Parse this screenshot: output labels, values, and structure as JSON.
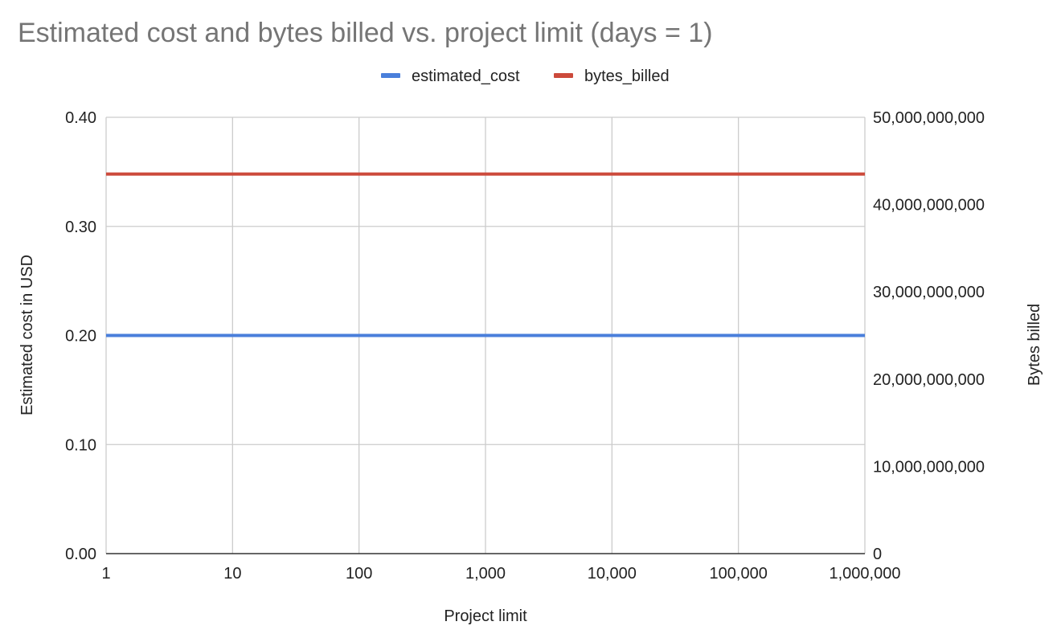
{
  "chart_data": {
    "type": "line",
    "title": "Estimated cost and bytes billed vs. project limit (days = 1)",
    "xlabel": "Project limit",
    "ylabel": "Estimated cost in USD",
    "y2label": "Bytes billed",
    "x_scale": "log",
    "x": [
      1,
      10,
      100,
      1000,
      10000,
      100000,
      1000000
    ],
    "x_tick_labels": [
      "1",
      "10",
      "100",
      "1,000",
      "10,000",
      "100,000",
      "1,000,000"
    ],
    "y_ticks": [
      0,
      0.1,
      0.2,
      0.3,
      0.4
    ],
    "y_tick_labels": [
      "0.00",
      "0.10",
      "0.20",
      "0.30",
      "0.40"
    ],
    "ylim": [
      0,
      0.4
    ],
    "y2_ticks": [
      0,
      10000000000,
      20000000000,
      30000000000,
      40000000000,
      50000000000
    ],
    "y2_tick_labels": [
      "0",
      "10,000,000,000",
      "20,000,000,000",
      "30,000,000,000",
      "40,000,000,000",
      "50,000,000,000"
    ],
    "y2lim": [
      0,
      50000000000
    ],
    "legend_position": "top",
    "grid": true,
    "series": [
      {
        "name": "estimated_cost",
        "axis": "left",
        "color": "#4a7fdb",
        "values": [
          0.2,
          0.2,
          0.2,
          0.2,
          0.2,
          0.2,
          0.2
        ]
      },
      {
        "name": "bytes_billed",
        "axis": "right",
        "color": "#cc4a3b",
        "values": [
          43500000000,
          43500000000,
          43500000000,
          43500000000,
          43500000000,
          43500000000,
          43500000000
        ]
      }
    ]
  }
}
